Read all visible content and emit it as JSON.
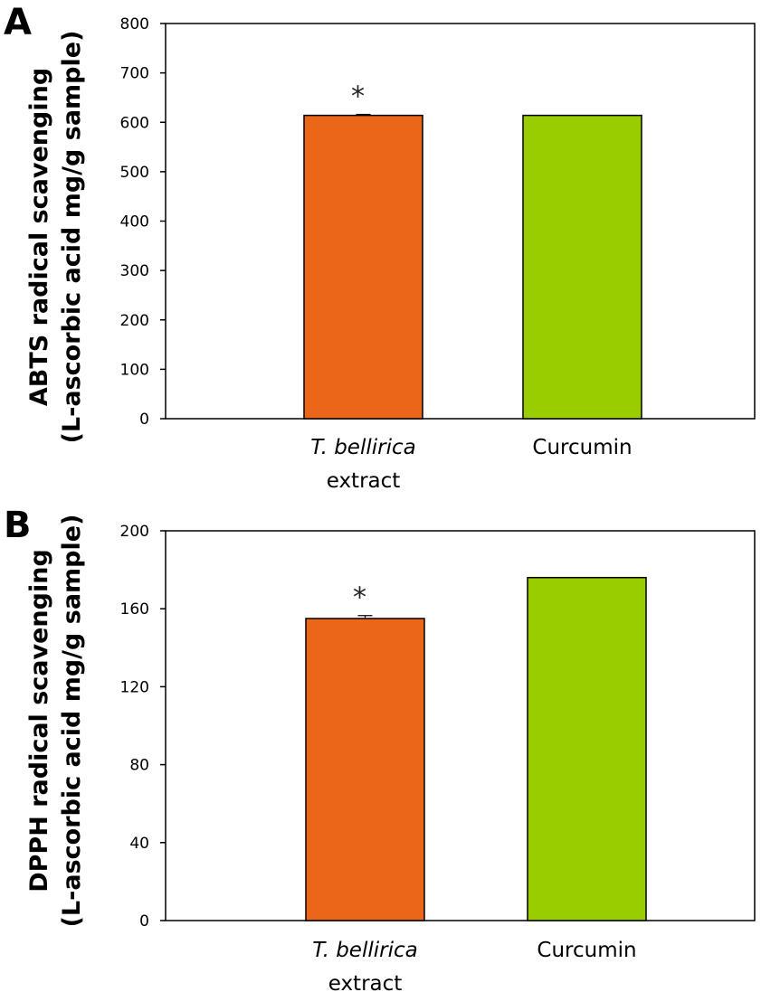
{
  "colors": {
    "orange": "#EC6619",
    "green": "#9ACD00",
    "axis": "#000000"
  },
  "chart_data": [
    {
      "panel": "A",
      "type": "bar",
      "categories": [
        "T. bellirica extract",
        "Curcumin"
      ],
      "category_lines": [
        [
          "T. bellirica",
          "extract"
        ],
        [
          "Curcumin"
        ]
      ],
      "values": [
        614,
        614
      ],
      "errors": [
        2,
        0
      ],
      "significance": [
        "*",
        ""
      ],
      "ylim": [
        0,
        800
      ],
      "yticks": [
        0,
        100,
        200,
        300,
        400,
        500,
        600,
        700,
        800
      ],
      "ylabel_line1": "ABTS radical scavenging",
      "ylabel_line2": "(L-ascorbic acid mg/g sample)",
      "colors": [
        "#EC6619",
        "#9ACD00"
      ]
    },
    {
      "panel": "B",
      "type": "bar",
      "categories": [
        "T. bellirica extract",
        "Curcumin"
      ],
      "category_lines": [
        [
          "T. bellirica",
          "extract"
        ],
        [
          "Curcumin"
        ]
      ],
      "values": [
        155,
        176
      ],
      "errors": [
        1.5,
        0
      ],
      "significance": [
        "*",
        ""
      ],
      "ylim": [
        0,
        200
      ],
      "yticks": [
        0,
        40,
        80,
        120,
        160,
        200
      ],
      "ylabel_line1": "DPPH radical scavenging",
      "ylabel_line2": "(L-ascorbic acid mg/g sample)",
      "colors": [
        "#EC6619",
        "#9ACD00"
      ]
    }
  ]
}
